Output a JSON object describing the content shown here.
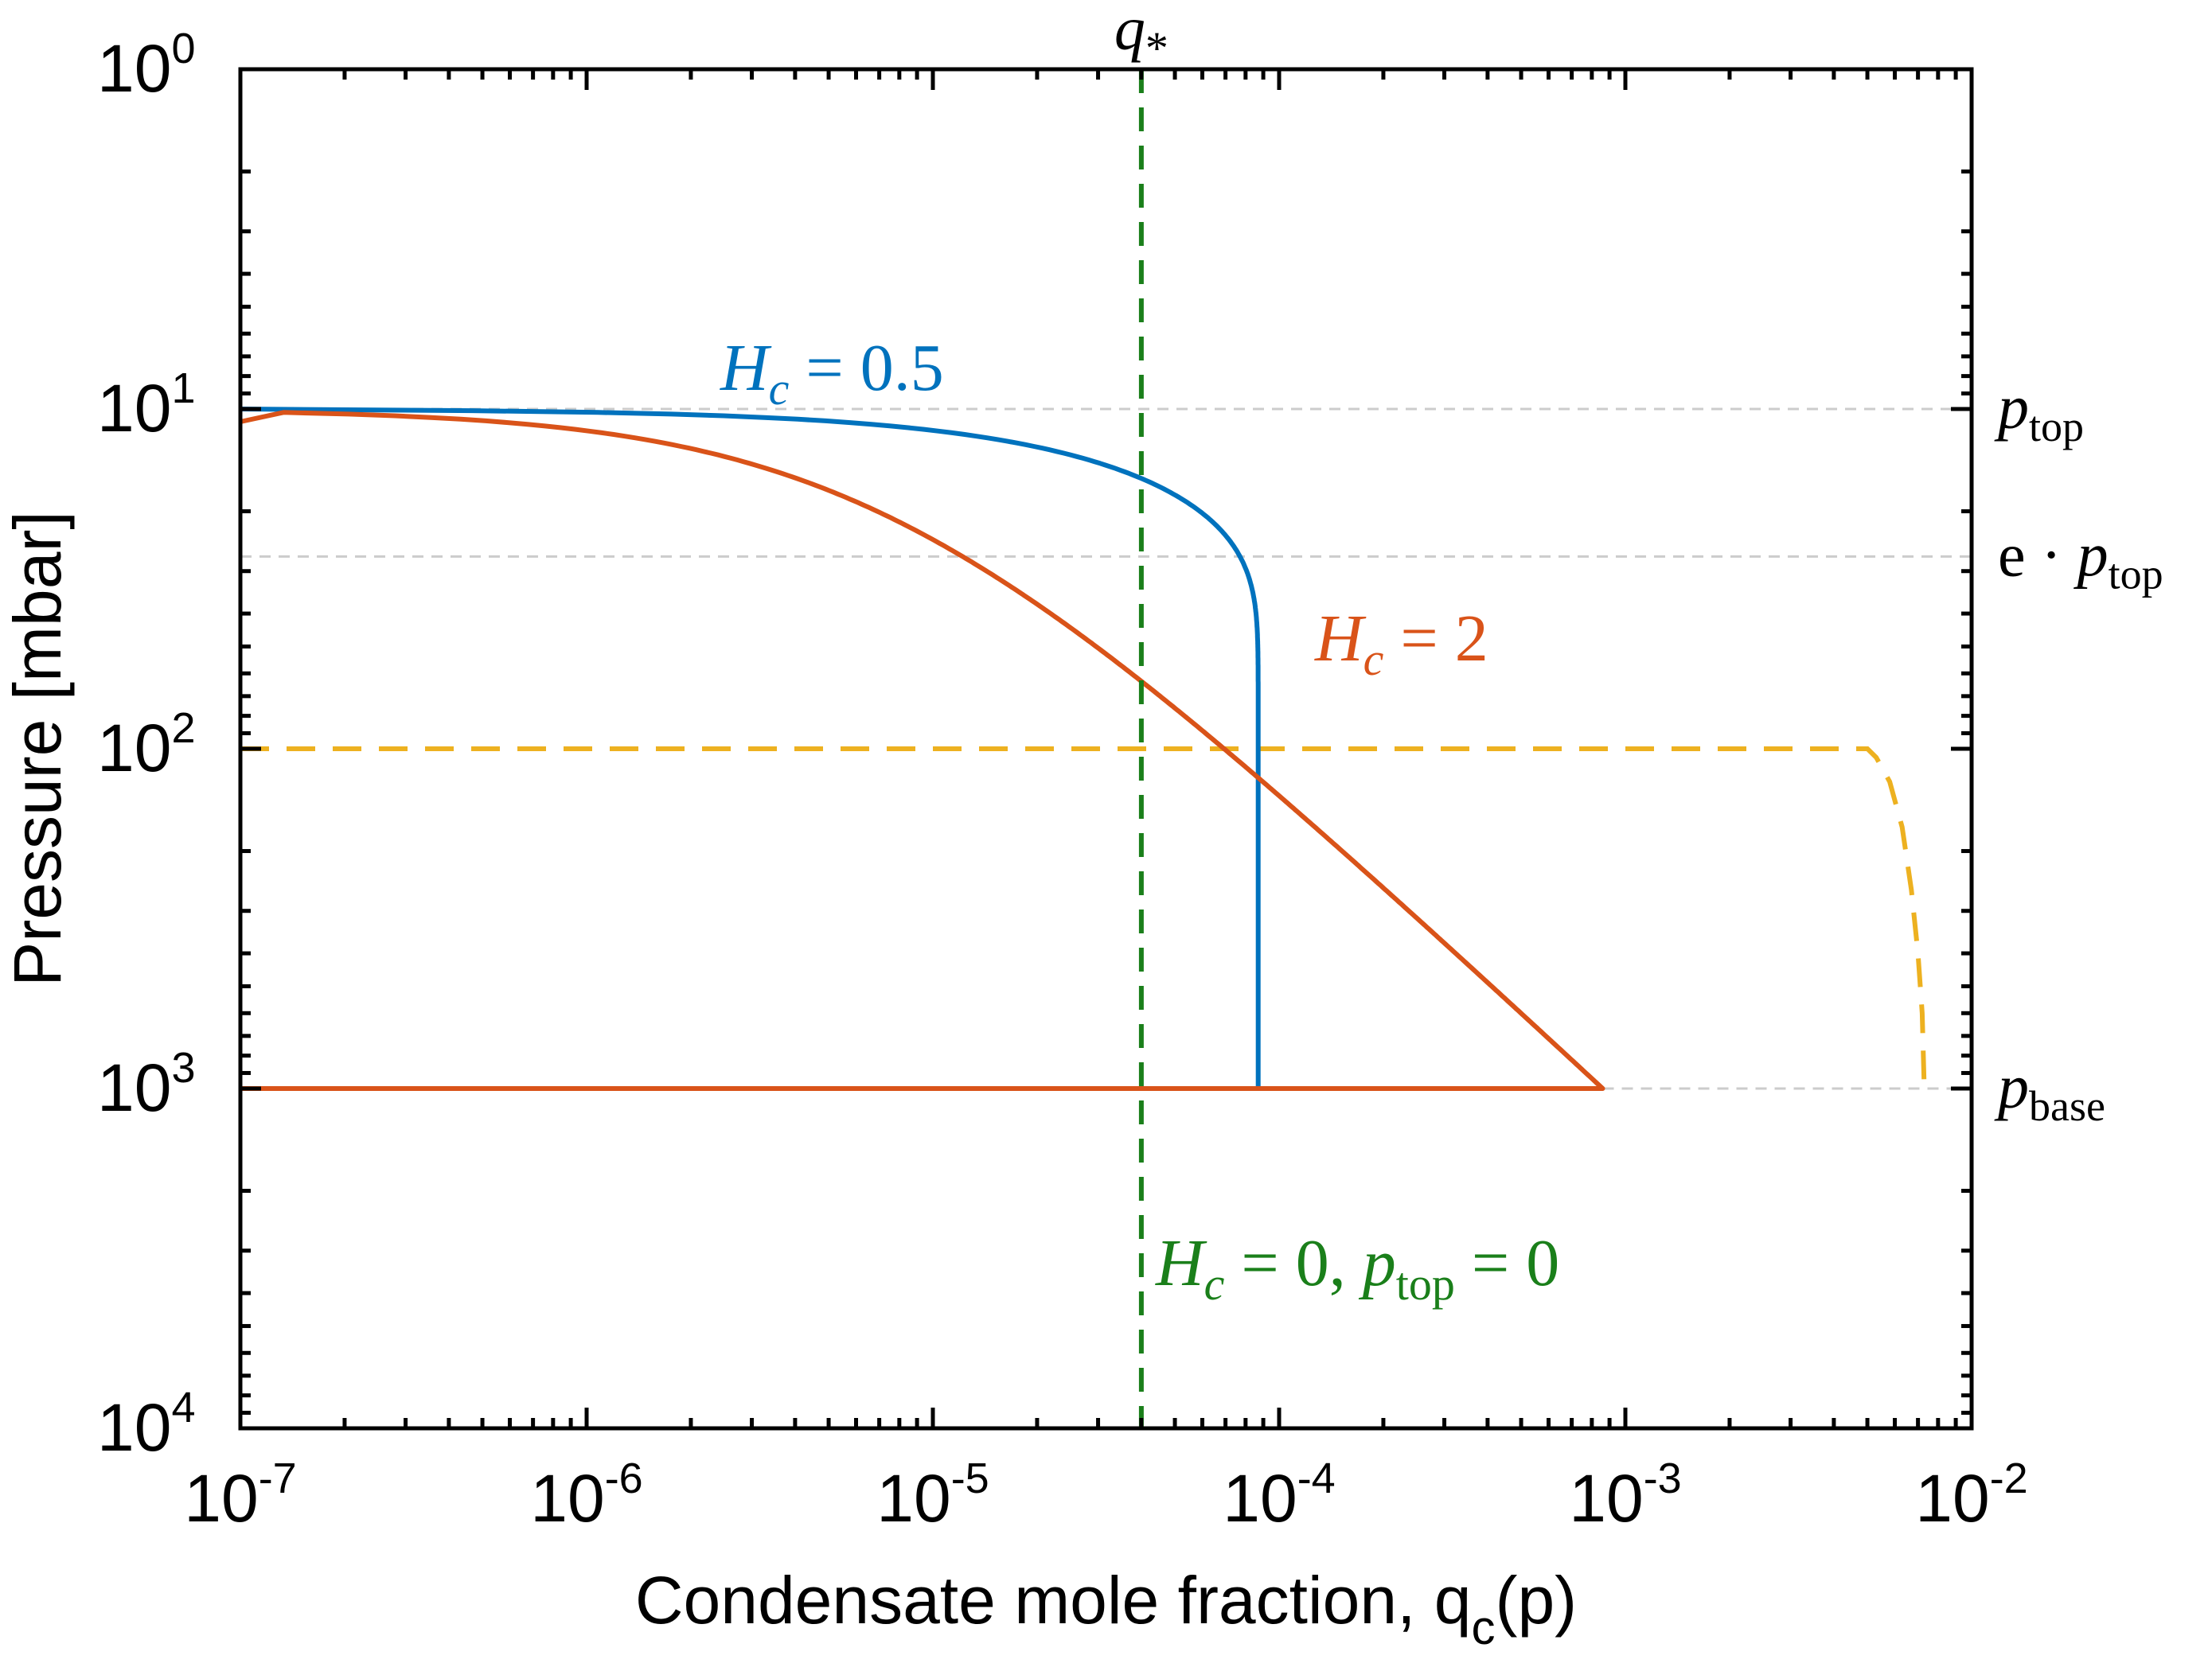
{
  "chart_data": {
    "type": "line",
    "xscale": "log",
    "yscale": "log",
    "y_reversed": true,
    "xlim": [
      1e-07,
      0.01
    ],
    "ylim": [
      1,
      10000
    ],
    "xlabel": "Condensate mole fraction, q",
    "xlabel_sub": "c",
    "xlabel_tail": "(p)",
    "ylabel": "Pressure [mbar]",
    "x_ticks": [
      {
        "value": 1e-07,
        "base": "10",
        "exp": "-7"
      },
      {
        "value": 1e-06,
        "base": "10",
        "exp": "-6"
      },
      {
        "value": 1e-05,
        "base": "10",
        "exp": "-5"
      },
      {
        "value": 0.0001,
        "base": "10",
        "exp": "-4"
      },
      {
        "value": 0.001,
        "base": "10",
        "exp": "-3"
      },
      {
        "value": 0.01,
        "base": "10",
        "exp": "-2"
      }
    ],
    "y_ticks": [
      {
        "value": 1,
        "base": "10",
        "exp": "0"
      },
      {
        "value": 10,
        "base": "10",
        "exp": "1"
      },
      {
        "value": 100,
        "base": "10",
        "exp": "2"
      },
      {
        "value": 1000,
        "base": "10",
        "exp": "3"
      },
      {
        "value": 10000,
        "base": "10",
        "exp": "4"
      }
    ],
    "parameters": {
      "p_top": 10,
      "p_base": 1000,
      "q_star": 4e-05,
      "e_p_top": 27.18
    },
    "reference_lines": [
      {
        "name": "p_top",
        "orientation": "horizontal",
        "y": 10,
        "label_main": "p",
        "label_sub": "top",
        "color": "#cccccc"
      },
      {
        "name": "e_p_top",
        "orientation": "horizontal",
        "y": 27.18,
        "label_prefix": "e · ",
        "label_main": "p",
        "label_sub": "top",
        "color": "#cccccc"
      },
      {
        "name": "p_base",
        "orientation": "horizontal",
        "y": 1000,
        "label_main": "p",
        "label_sub": "base",
        "color": "#cccccc"
      }
    ],
    "q_star_line": {
      "x": 4e-05,
      "label_main": "q",
      "label_sub": "*",
      "color": "#1a7f1a",
      "annotation": {
        "H": "H",
        "sub": "c",
        "text1": " = 0, ",
        "p": "p",
        "psub": "top",
        "text2": " = 0"
      }
    },
    "series": [
      {
        "name": "H_c = 0.5",
        "H_c": 0.5,
        "color": "#0072BD",
        "label_H": "H",
        "label_sub": "c",
        "label_eq": " = 0.5",
        "x_at_p_base": 8.7e-05
      },
      {
        "name": "H_c = 2",
        "H_c": 2,
        "color": "#D95319",
        "label_H": "H",
        "label_sub": "c",
        "label_eq": " = 2",
        "x_at_p_base": 0.00086
      },
      {
        "name": "saturation",
        "color": "#EDB120",
        "dashed": true,
        "points": [
          [
            1e-07,
            100
          ],
          [
            0.005,
            100
          ],
          [
            0.0053,
            106
          ],
          [
            0.0058,
            125
          ],
          [
            0.0063,
            170
          ],
          [
            0.0067,
            260
          ],
          [
            0.007,
            400
          ],
          [
            0.0072,
            600
          ],
          [
            0.0073,
            1000
          ]
        ]
      }
    ],
    "colors": {
      "axes": "#000000",
      "grid_ref": "#cccccc",
      "blue": "#0072BD",
      "orange": "#D95319",
      "yellow": "#EDB120",
      "green": "#1a7f1a"
    }
  }
}
